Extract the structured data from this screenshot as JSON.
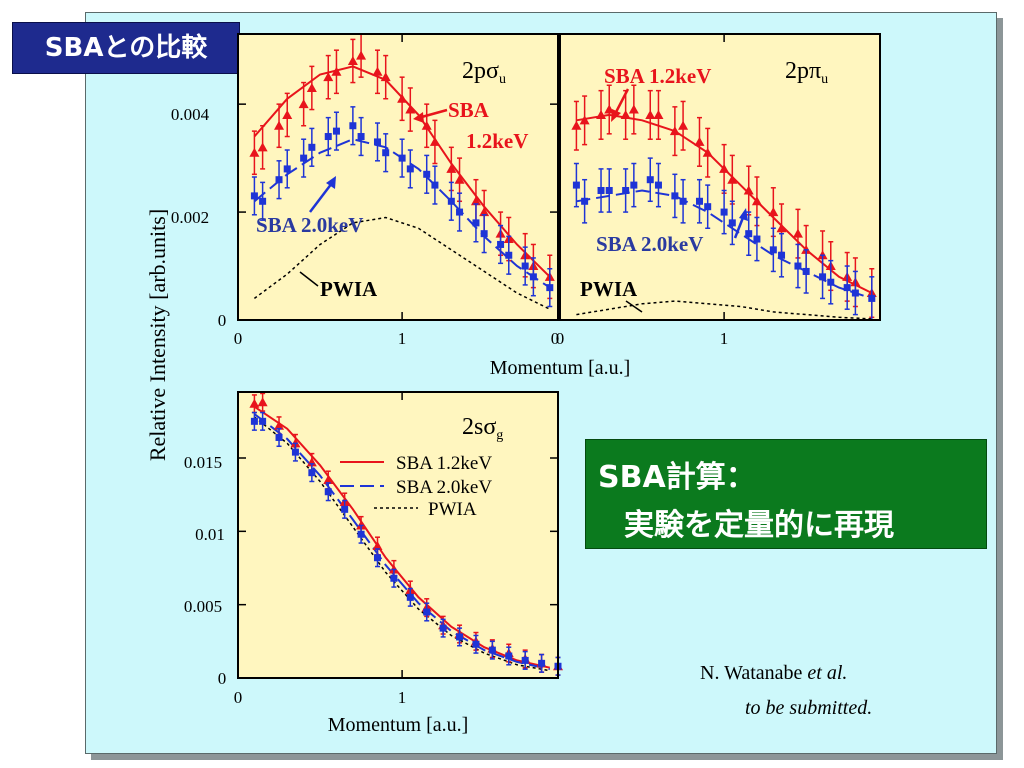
{
  "slide": {
    "title": "SBAとの比較",
    "conclusion_line1": "SBA計算：",
    "conclusion_line2": "実験を定量的に再現",
    "citation_author": "N. Watanabe ",
    "citation_etal": "et al.",
    "citation_status": "to be submitted."
  },
  "colors": {
    "sba12": "#e8141c",
    "sba20": "#1e34d6",
    "pwia": "#000000",
    "plot_bg": "#fff6bf",
    "panel_bg": "#cdf8fb"
  },
  "chart_data": [
    {
      "type": "line",
      "panel": "2p-sigma-u",
      "title_base": "2p",
      "title_sub": "σ",
      "title_subsub": "u",
      "ylabel": "Relative Intensity [arb.units]",
      "xlabel": "Momentum [a.u.]",
      "xlim": [
        0,
        1.95
      ],
      "ylim": [
        0,
        0.0053
      ],
      "xticks": [
        "0",
        "1"
      ],
      "xtick_values": [
        0,
        1
      ],
      "right_xtick": "0",
      "yticks": [
        "0",
        "0.002",
        "0.004"
      ],
      "ytick_values": [
        0,
        0.002,
        0.004
      ],
      "annotations": {
        "sba12_a": "SBA",
        "sba12_b": "1.2keV",
        "sba20": "SBA 2.0keV",
        "pwia": "PWIA"
      },
      "series": [
        {
          "name": "SBA 1.2keV",
          "kind": "theory",
          "x": [
            0.1,
            0.3,
            0.5,
            0.7,
            0.9,
            1.1,
            1.3,
            1.5,
            1.7,
            1.9
          ],
          "y": [
            0.0034,
            0.0041,
            0.00455,
            0.0047,
            0.00445,
            0.0038,
            0.0029,
            0.0021,
            0.0014,
            0.0008
          ]
        },
        {
          "name": "SBA 2.0keV",
          "kind": "theory",
          "x": [
            0.1,
            0.3,
            0.5,
            0.7,
            0.9,
            1.1,
            1.3,
            1.5,
            1.7,
            1.9
          ],
          "y": [
            0.0022,
            0.0027,
            0.0031,
            0.00335,
            0.0032,
            0.0028,
            0.0022,
            0.00155,
            0.001,
            0.0006
          ]
        },
        {
          "name": "PWIA",
          "kind": "theory",
          "x": [
            0.1,
            0.3,
            0.5,
            0.7,
            0.9,
            1.1,
            1.3,
            1.5,
            1.7,
            1.9
          ],
          "y": [
            0.0004,
            0.00085,
            0.0014,
            0.0018,
            0.0019,
            0.0017,
            0.0013,
            0.0009,
            0.0005,
            0.0002
          ]
        },
        {
          "name": "Experiment 1.2keV",
          "kind": "data",
          "marker": "triangle",
          "x": [
            0.1,
            0.15,
            0.25,
            0.3,
            0.4,
            0.45,
            0.55,
            0.6,
            0.7,
            0.75,
            0.85,
            0.9,
            1.0,
            1.05,
            1.15,
            1.2,
            1.3,
            1.35,
            1.45,
            1.5,
            1.6,
            1.65,
            1.75,
            1.8,
            1.9
          ],
          "y": [
            0.0031,
            0.0032,
            0.0036,
            0.0038,
            0.004,
            0.0043,
            0.0045,
            0.0046,
            0.0048,
            0.0049,
            0.0046,
            0.0045,
            0.0041,
            0.0039,
            0.0036,
            0.0033,
            0.0028,
            0.0026,
            0.0022,
            0.002,
            0.0016,
            0.0015,
            0.0012,
            0.001,
            0.0008
          ],
          "err": 0.0004
        },
        {
          "name": "Experiment 2.0keV",
          "kind": "data",
          "marker": "square",
          "x": [
            0.1,
            0.15,
            0.25,
            0.3,
            0.4,
            0.45,
            0.55,
            0.6,
            0.7,
            0.75,
            0.85,
            0.9,
            1.0,
            1.05,
            1.15,
            1.2,
            1.3,
            1.35,
            1.45,
            1.5,
            1.6,
            1.65,
            1.75,
            1.8,
            1.9
          ],
          "y": [
            0.0023,
            0.0022,
            0.0026,
            0.0028,
            0.003,
            0.0032,
            0.0034,
            0.0035,
            0.0036,
            0.0034,
            0.0033,
            0.0031,
            0.003,
            0.0028,
            0.0027,
            0.0025,
            0.0022,
            0.002,
            0.0018,
            0.0016,
            0.0014,
            0.0012,
            0.001,
            0.0008,
            0.0006
          ],
          "err": 0.00035
        }
      ]
    },
    {
      "type": "line",
      "panel": "2p-pi-u",
      "title_base": "2p",
      "title_sub": "π",
      "title_subsub": "u",
      "xlabel": "Momentum [a.u.]",
      "xlim": [
        0,
        1.95
      ],
      "ylim": [
        0,
        0.0053
      ],
      "xticks": [
        "0",
        "1"
      ],
      "xtick_values": [
        0,
        1
      ],
      "annotations": {
        "sba12": "SBA 1.2keV",
        "sba20": "SBA 2.0keV",
        "pwia": "PWIA"
      },
      "series": [
        {
          "name": "SBA 1.2keV",
          "kind": "theory",
          "x": [
            0.1,
            0.3,
            0.5,
            0.7,
            0.9,
            1.1,
            1.3,
            1.5,
            1.7,
            1.9
          ],
          "y": [
            0.0037,
            0.0038,
            0.0037,
            0.0035,
            0.0031,
            0.0025,
            0.0019,
            0.0013,
            0.0008,
            0.0005
          ]
        },
        {
          "name": "SBA 2.0keV",
          "kind": "theory",
          "x": [
            0.1,
            0.3,
            0.5,
            0.7,
            0.9,
            1.1,
            1.3,
            1.5,
            1.7,
            1.9
          ],
          "y": [
            0.0022,
            0.0023,
            0.0024,
            0.0023,
            0.002,
            0.0016,
            0.0012,
            0.0009,
            0.0006,
            0.0004
          ]
        },
        {
          "name": "PWIA",
          "kind": "theory",
          "x": [
            0.1,
            0.3,
            0.5,
            0.7,
            0.9,
            1.1,
            1.3,
            1.5,
            1.7,
            1.9
          ],
          "y": [
            0.0001,
            0.0002,
            0.0003,
            0.00035,
            0.0003,
            0.00025,
            0.00015,
            0.0001,
            5e-05,
            2e-05
          ]
        },
        {
          "name": "Experiment 1.2keV",
          "kind": "data",
          "marker": "triangle",
          "x": [
            0.1,
            0.15,
            0.25,
            0.3,
            0.4,
            0.45,
            0.55,
            0.6,
            0.7,
            0.75,
            0.85,
            0.9,
            1.0,
            1.05,
            1.15,
            1.2,
            1.3,
            1.35,
            1.45,
            1.5,
            1.6,
            1.65,
            1.75,
            1.8,
            1.9
          ],
          "y": [
            0.0036,
            0.0037,
            0.0038,
            0.0039,
            0.0038,
            0.0039,
            0.0038,
            0.0038,
            0.0035,
            0.0036,
            0.0033,
            0.0031,
            0.0028,
            0.0026,
            0.0024,
            0.0022,
            0.002,
            0.0017,
            0.0016,
            0.0013,
            0.0012,
            0.001,
            0.0008,
            0.0007,
            0.0005
          ],
          "err": 0.00045
        },
        {
          "name": "Experiment 2.0keV",
          "kind": "data",
          "marker": "square",
          "x": [
            0.1,
            0.15,
            0.25,
            0.3,
            0.4,
            0.45,
            0.55,
            0.6,
            0.7,
            0.75,
            0.85,
            0.9,
            1.0,
            1.05,
            1.15,
            1.2,
            1.3,
            1.35,
            1.45,
            1.5,
            1.6,
            1.65,
            1.75,
            1.8,
            1.9
          ],
          "y": [
            0.0025,
            0.0022,
            0.0024,
            0.0024,
            0.0024,
            0.0025,
            0.0026,
            0.0025,
            0.0023,
            0.0022,
            0.0022,
            0.0021,
            0.002,
            0.0018,
            0.0016,
            0.0015,
            0.0013,
            0.0012,
            0.001,
            0.0009,
            0.0008,
            0.0007,
            0.0006,
            0.0005,
            0.0004
          ],
          "err": 0.0004
        }
      ]
    },
    {
      "type": "line",
      "panel": "2s-sigma-g",
      "title_base": "2s",
      "title_sub": "σ",
      "title_subsub": "g",
      "xlabel": "Momentum [a.u.]",
      "xlim": [
        0,
        1.95
      ],
      "ylim": [
        0,
        0.0195
      ],
      "xticks": [
        "0",
        "1"
      ],
      "xtick_values": [
        0,
        1
      ],
      "yticks": [
        "0",
        "0.005",
        "0.01",
        "0.015"
      ],
      "ytick_values": [
        0,
        0.005,
        0.01,
        0.015
      ],
      "legend": [
        "SBA 1.2keV",
        "SBA 2.0keV",
        "PWIA"
      ],
      "legend_position": "top-right",
      "series": [
        {
          "name": "SBA 1.2keV",
          "kind": "theory",
          "x": [
            0.1,
            0.3,
            0.5,
            0.7,
            0.9,
            1.1,
            1.3,
            1.5,
            1.7,
            1.9
          ],
          "y": [
            0.0185,
            0.017,
            0.0145,
            0.0115,
            0.0082,
            0.0055,
            0.0035,
            0.0021,
            0.0012,
            0.0007
          ]
        },
        {
          "name": "SBA 2.0keV",
          "kind": "theory",
          "x": [
            0.1,
            0.3,
            0.5,
            0.7,
            0.9,
            1.1,
            1.3,
            1.5,
            1.7,
            1.9
          ],
          "y": [
            0.018,
            0.0163,
            0.0138,
            0.0108,
            0.0077,
            0.0051,
            0.0032,
            0.0019,
            0.0011,
            0.0006
          ]
        },
        {
          "name": "PWIA",
          "kind": "theory",
          "x": [
            0.1,
            0.3,
            0.5,
            0.7,
            0.9,
            1.1,
            1.3,
            1.5,
            1.7,
            1.9
          ],
          "y": [
            0.0178,
            0.016,
            0.0134,
            0.0103,
            0.0072,
            0.0047,
            0.0029,
            0.0017,
            0.0009,
            0.0005
          ]
        },
        {
          "name": "Experiment 1.2keV",
          "kind": "data",
          "marker": "triangle",
          "x": [
            0.1,
            0.15,
            0.25,
            0.35,
            0.45,
            0.55,
            0.65,
            0.75,
            0.85,
            0.95,
            1.05,
            1.15,
            1.25,
            1.35,
            1.45,
            1.55,
            1.65,
            1.75,
            1.85,
            1.95
          ],
          "y": [
            0.0187,
            0.0188,
            0.0172,
            0.016,
            0.0147,
            0.0135,
            0.012,
            0.0104,
            0.009,
            0.0074,
            0.006,
            0.0048,
            0.0036,
            0.003,
            0.0025,
            0.002,
            0.0017,
            0.0013,
            0.001,
            0.0008
          ],
          "err": 0.0006
        },
        {
          "name": "Experiment 2.0keV",
          "kind": "data",
          "marker": "square",
          "x": [
            0.1,
            0.15,
            0.25,
            0.35,
            0.45,
            0.55,
            0.65,
            0.75,
            0.85,
            0.95,
            1.05,
            1.15,
            1.25,
            1.35,
            1.45,
            1.55,
            1.65,
            1.75,
            1.85,
            1.95
          ],
          "y": [
            0.0175,
            0.0175,
            0.0164,
            0.0154,
            0.014,
            0.0127,
            0.0115,
            0.0098,
            0.0082,
            0.0068,
            0.0055,
            0.0045,
            0.0034,
            0.0028,
            0.0023,
            0.0019,
            0.0015,
            0.0012,
            0.001,
            0.0008
          ],
          "err": 0.0006
        }
      ]
    }
  ]
}
